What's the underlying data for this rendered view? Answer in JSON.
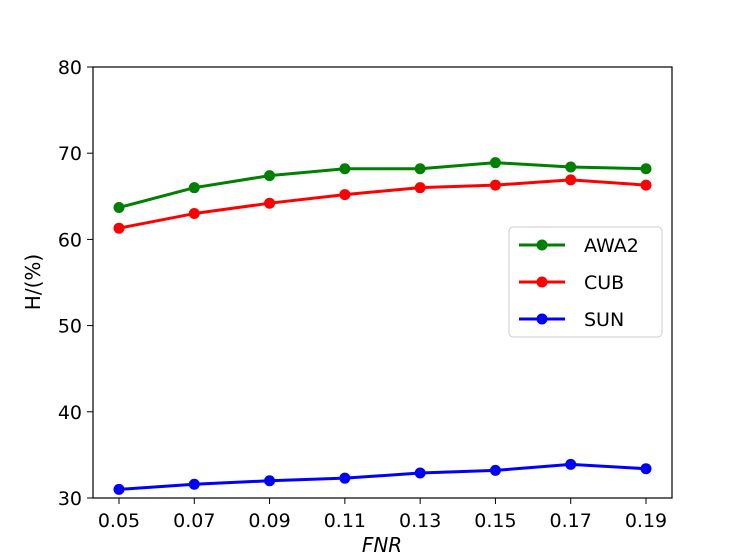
{
  "chart_data": {
    "type": "line",
    "title": "",
    "xlabel": "FNR",
    "ylabel": "H/(%)",
    "x": [
      "0.05",
      "0.07",
      "0.09",
      "0.11",
      "0.13",
      "0.15",
      "0.17",
      "0.19"
    ],
    "ylim": [
      30,
      80
    ],
    "yticks": [
      "30",
      "40",
      "50",
      "60",
      "70",
      "80"
    ],
    "grid": false,
    "legend_position": "center-right",
    "series": [
      {
        "name": "AWA2",
        "color": "#008000",
        "values": [
          63.7,
          66.0,
          67.4,
          68.2,
          68.2,
          68.9,
          68.4,
          68.2
        ]
      },
      {
        "name": "CUB",
        "color": "#ff0000",
        "values": [
          61.3,
          63.0,
          64.2,
          65.2,
          66.0,
          66.3,
          66.9,
          66.3
        ]
      },
      {
        "name": "SUN",
        "color": "#0000ff",
        "values": [
          31.0,
          31.6,
          32.0,
          32.3,
          32.9,
          33.2,
          33.9,
          33.4
        ]
      }
    ]
  }
}
